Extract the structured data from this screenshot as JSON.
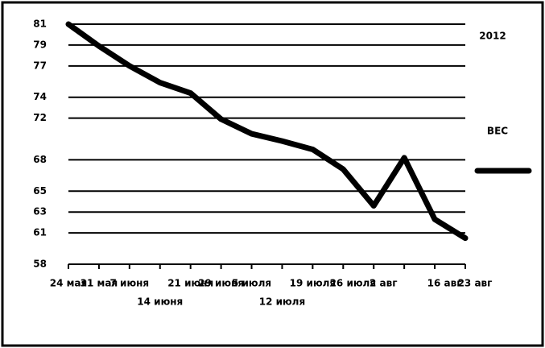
{
  "chart_data": {
    "type": "line",
    "annotation": "2012",
    "categories": [
      "24 мая",
      "31 мая",
      "7 июня",
      "14 июня",
      "21 июня",
      "29 июня",
      "5 июля",
      "12 июля",
      "19 июля",
      "26 июля",
      "2 авг",
      null,
      "16 авг",
      "23 авг"
    ],
    "series": [
      {
        "name": "ВЕС",
        "color": "#000000",
        "values": [
          81,
          78.9,
          77.0,
          75.4,
          74.4,
          71.9,
          70.5,
          69.8,
          69.0,
          67.1,
          63.6,
          68.2,
          62.3,
          60.5
        ]
      }
    ],
    "ylim": [
      58,
      81
    ],
    "yticks": [
      58,
      61,
      63,
      65,
      68,
      72,
      74,
      77,
      79,
      81
    ],
    "grid": true,
    "legend": "right"
  }
}
